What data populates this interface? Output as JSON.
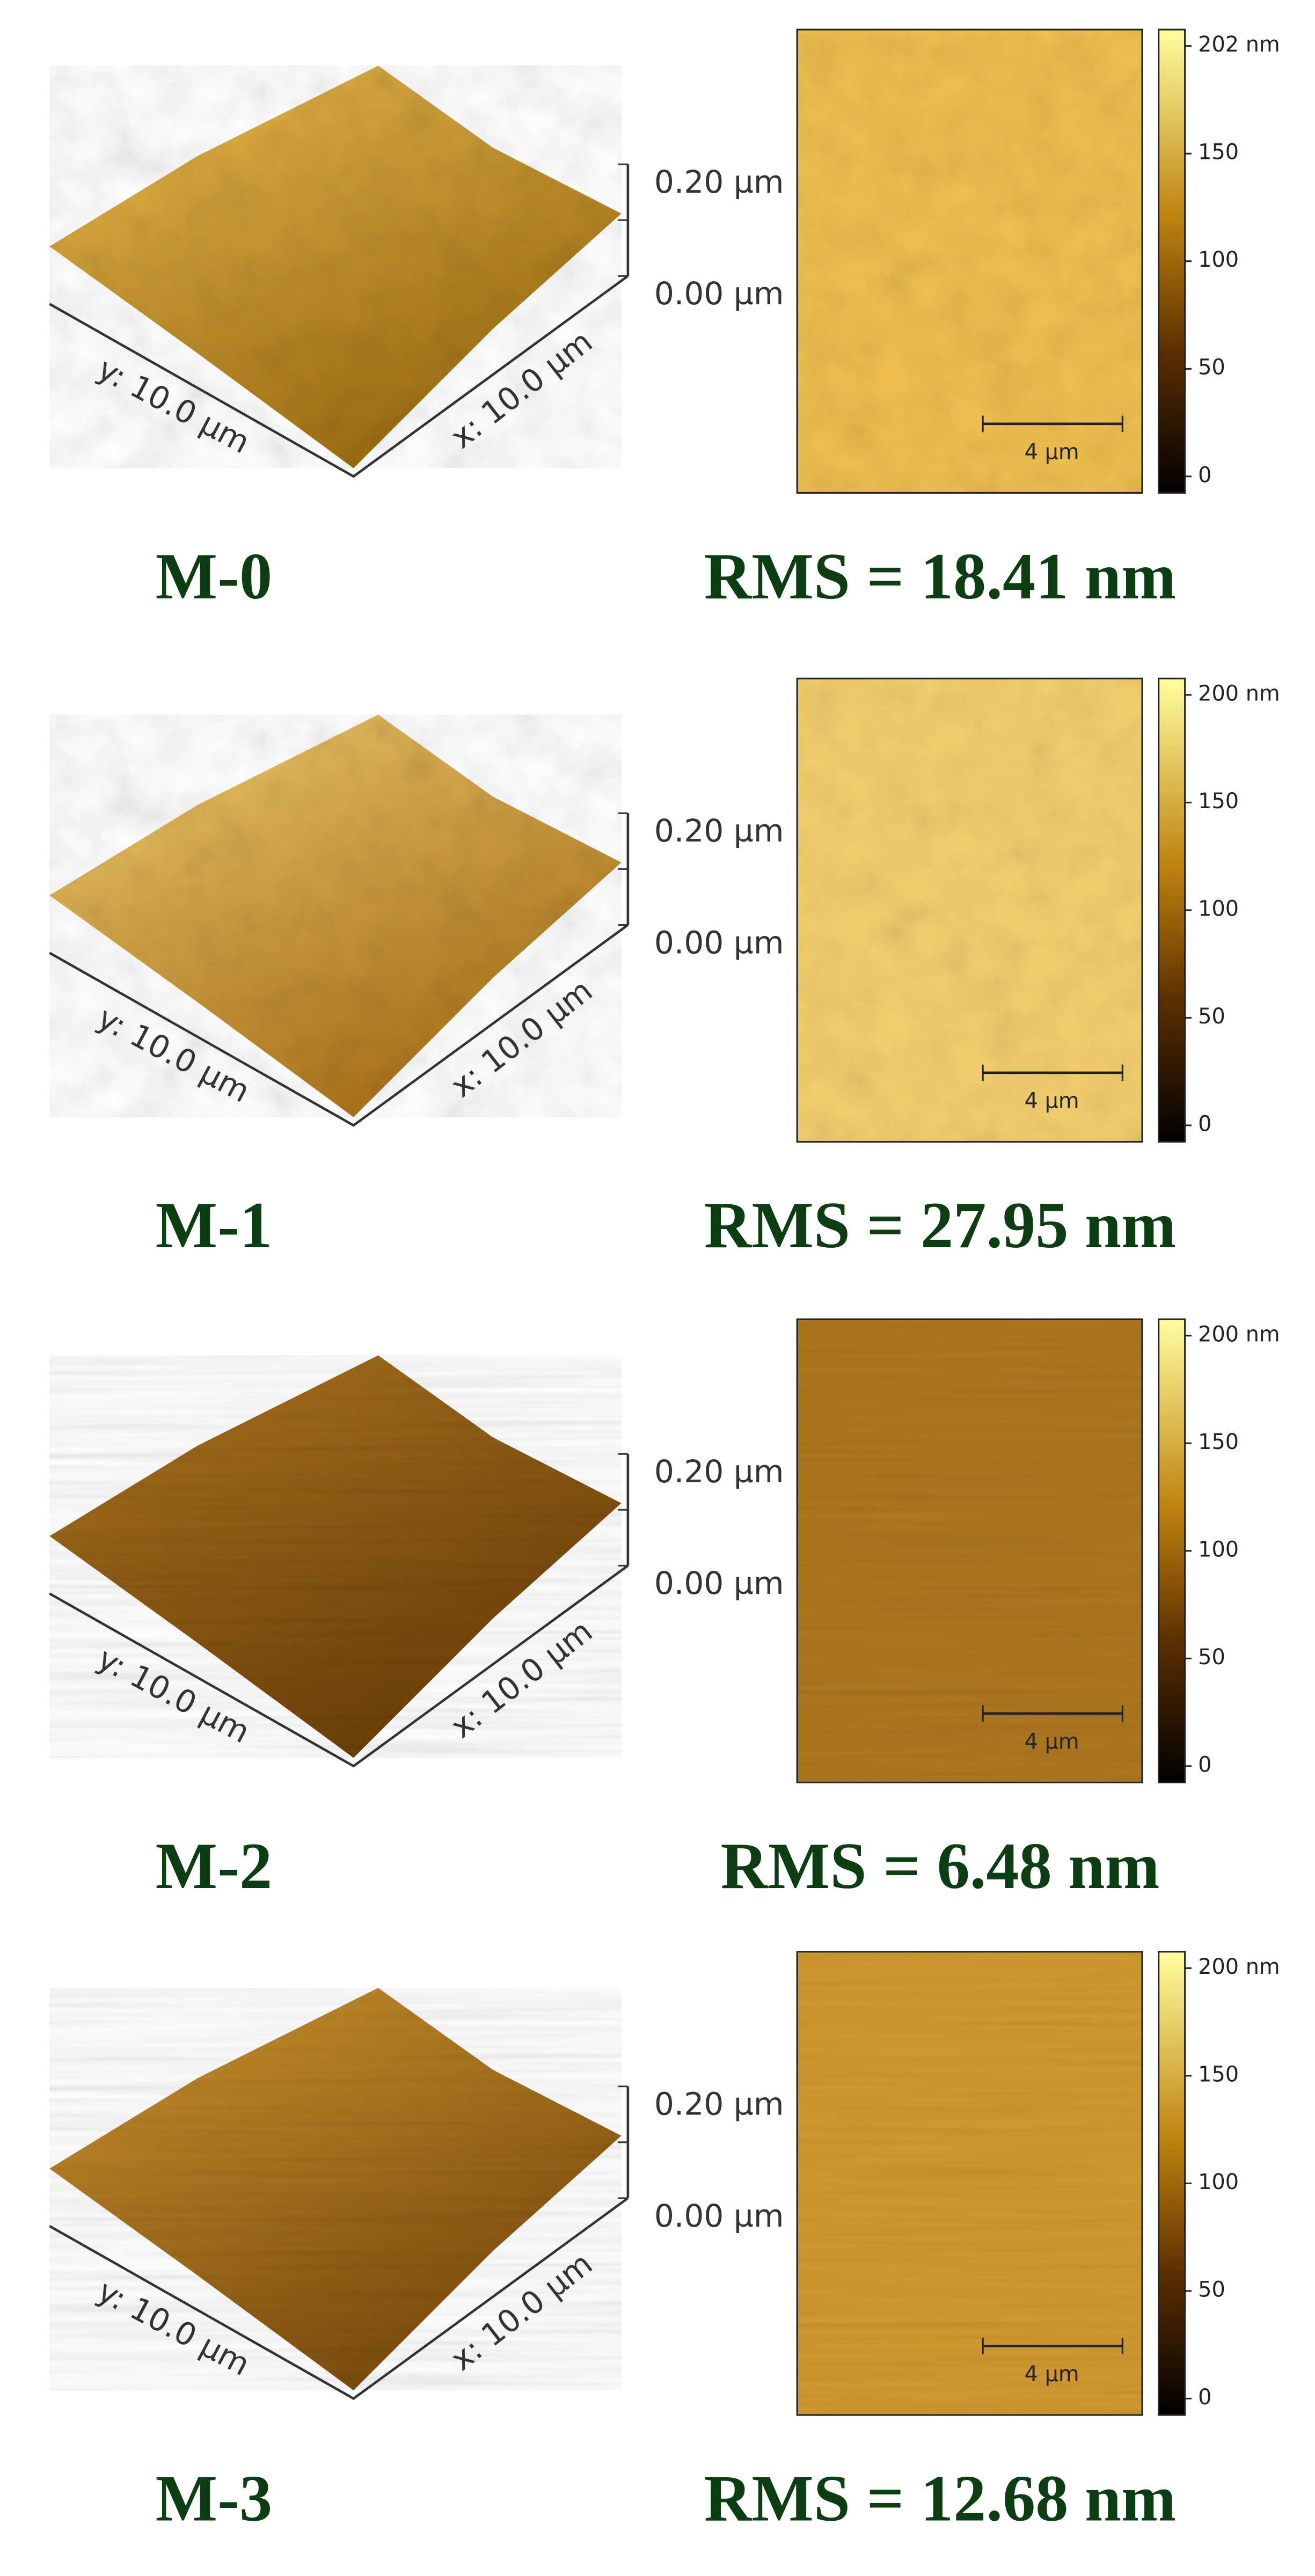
{
  "panels": [
    {
      "sample": "M-0",
      "rms": "RMS = 18.41 nm",
      "height_3d": {
        "top": "0.20 µm",
        "bottom": "0.00 µm"
      },
      "axes_3d": {
        "y": "y: 10.0 µm",
        "x": "x: 10.0 µm"
      },
      "scale_bar": "4 µm",
      "colorbar": [
        "202 nm",
        "150",
        "100",
        "50",
        "0"
      ]
    },
    {
      "sample": "M-1",
      "rms": "RMS = 27.95 nm",
      "height_3d": {
        "top": "0.20 µm",
        "bottom": "0.00 µm"
      },
      "axes_3d": {
        "y": "y: 10.0 µm",
        "x": "x: 10.0 µm"
      },
      "scale_bar": "4 µm",
      "colorbar": [
        "200 nm",
        "150",
        "100",
        "50",
        "0"
      ]
    },
    {
      "sample": "M-2",
      "rms": "RMS = 6.48 nm",
      "height_3d": {
        "top": "0.20 µm",
        "bottom": "0.00 µm"
      },
      "axes_3d": {
        "y": "y: 10.0 µm",
        "x": "x: 10.0 µm"
      },
      "scale_bar": "4 µm",
      "colorbar": [
        "200 nm",
        "150",
        "100",
        "50",
        "0"
      ]
    },
    {
      "sample": "M-3",
      "rms": "RMS = 12.68 nm",
      "height_3d": {
        "top": "0.20 µm",
        "bottom": "0.00 µm"
      },
      "axes_3d": {
        "y": "y: 10.0 µm",
        "x": "x: 10.0 µm"
      },
      "scale_bar": "4 µm",
      "colorbar": [
        "200 nm",
        "150",
        "100",
        "50",
        "0"
      ]
    }
  ]
}
